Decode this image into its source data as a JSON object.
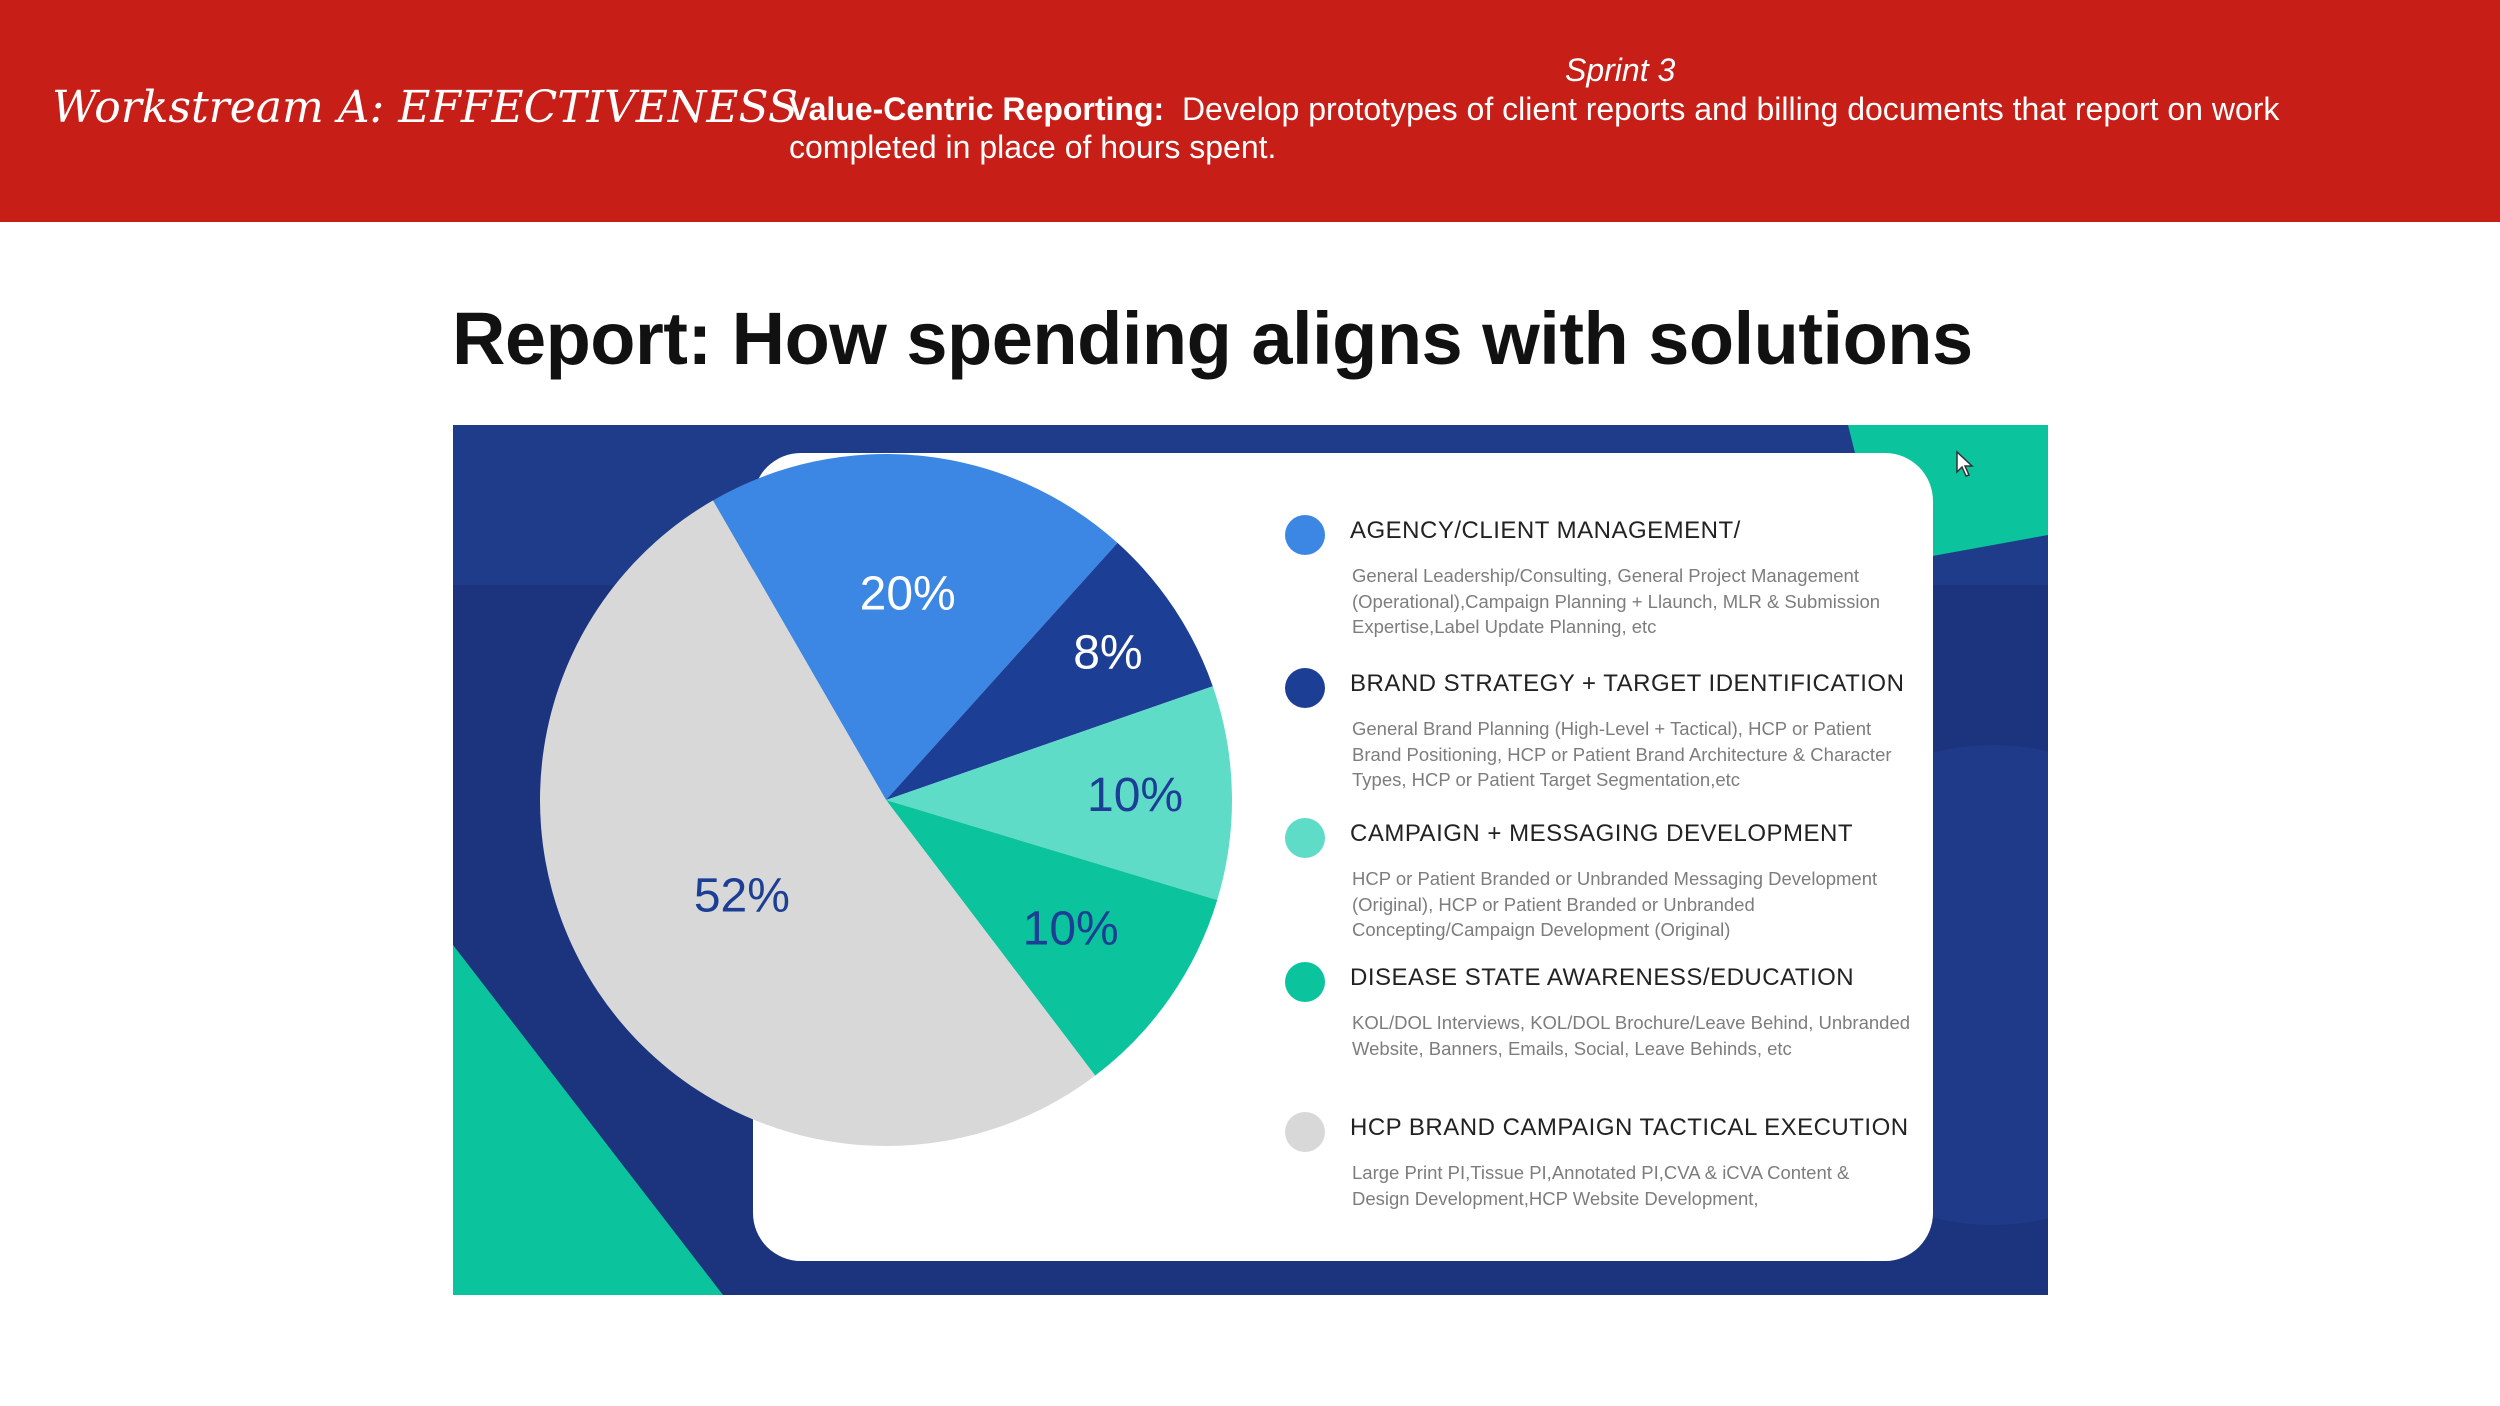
{
  "header": {
    "workstream_title": "Workstream A: EFFECTIVENESS",
    "sprint": "Sprint 3",
    "value_label": "Value-Centric Reporting:",
    "value_text": "Develop prototypes of client reports and billing documents that report on work completed in place of hours spent."
  },
  "report_title": "Report: How spending aligns with solutions",
  "colors": {
    "header_red": "#c71f17",
    "navy_background": "#1b347d",
    "teal_accent": "#0bc39c"
  },
  "chart_data": {
    "type": "pie",
    "title": "",
    "slices": [
      {
        "label": "20%",
        "value": 20,
        "color": "#3b87e3",
        "label_color": "#ffffff"
      },
      {
        "label": "8%",
        "value": 8,
        "color": "#1c3f95",
        "label_color": "#ffffff"
      },
      {
        "label": "10%",
        "value": 10,
        "color": "#5fdcc7",
        "label_color": "#1c3f95"
      },
      {
        "label": "10%",
        "value": 10,
        "color": "#0bc39c",
        "label_color": "#1c3f95"
      },
      {
        "label": "52%",
        "value": 52,
        "color": "#d8d8d8",
        "label_color": "#1c3f95"
      }
    ],
    "legend": [
      {
        "title": "AGENCY/CLIENT MANAGEMENT/",
        "description": "General Leadership/Consulting, General Project Management (Operational),Campaign Planning + Llaunch, MLR & Submission Expertise,Label Update Planning, etc",
        "color": "#3b87e3"
      },
      {
        "title": "BRAND STRATEGY + TARGET IDENTIFICATION",
        "description": "General Brand Planning (High-Level + Tactical), HCP or Patient Brand Positioning, HCP or Patient Brand Architecture & Character Types, HCP or Patient Target Segmentation,etc",
        "color": "#1c3f95"
      },
      {
        "title": "CAMPAIGN + MESSAGING  DEVELOPMENT",
        "description": "HCP or Patient Branded or Unbranded Messaging Development (Original), HCP or Patient Branded or Unbranded Concepting/Campaign Development (Original)",
        "color": "#5fdcc7"
      },
      {
        "title": "DISEASE STATE AWARENESS/EDUCATION",
        "description": "KOL/DOL Interviews, KOL/DOL Brochure/Leave Behind, Unbranded Website, Banners, Emails, Social, Leave Behinds, etc",
        "color": "#0bc39c"
      },
      {
        "title": "HCP BRAND CAMPAIGN TACTICAL EXECUTION",
        "description": "Large Print PI,Tissue PI,Annotated PI,CVA & iCVA Content & Design Development,HCP Website Development,",
        "color": "#d8d8d8"
      }
    ]
  }
}
